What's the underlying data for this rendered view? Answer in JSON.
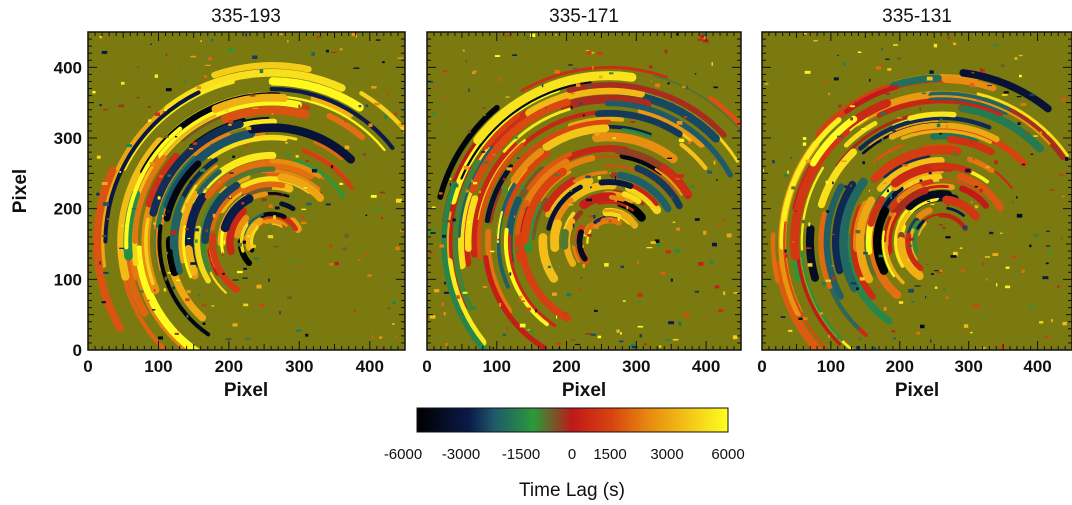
{
  "chart_data": {
    "type": "heatmap",
    "panels": [
      {
        "title": "335-193",
        "xlabel": "Pixel",
        "ylabel": "Pixel",
        "xlim": [
          0,
          450
        ],
        "ylim": [
          0,
          450
        ],
        "xticks": [
          "0",
          "100",
          "200",
          "300",
          "400"
        ],
        "yticks": [
          "0",
          "100",
          "200",
          "300",
          "400"
        ]
      },
      {
        "title": "335-171",
        "xlabel": "Pixel",
        "ylabel": "",
        "xlim": [
          0,
          450
        ],
        "ylim": [
          0,
          450
        ],
        "xticks": [
          "0",
          "100",
          "200",
          "300",
          "400"
        ],
        "yticks": []
      },
      {
        "title": "335-131",
        "xlabel": "Pixel",
        "ylabel": "",
        "xlim": [
          0,
          450
        ],
        "ylim": [
          0,
          450
        ],
        "xticks": [
          "0",
          "100",
          "200",
          "300",
          "400"
        ],
        "yticks": []
      }
    ],
    "colorbar": {
      "title": "Time Lag (s)",
      "range": [
        -6000,
        6000
      ],
      "tick_values": [
        -6000,
        -3000,
        -1500,
        0,
        1500,
        3000,
        6000
      ],
      "tick_labels": [
        "-6000",
        "-3000",
        "-1500",
        "0",
        "1500",
        "3000",
        "6000"
      ],
      "stops": [
        {
          "value": -6000,
          "color": "#000000"
        },
        {
          "value": -4000,
          "color": "#0a1a4a"
        },
        {
          "value": -3000,
          "color": "#1f5a6a"
        },
        {
          "value": -1500,
          "color": "#2a9a3a"
        },
        {
          "value": 0,
          "color": "#c01818"
        },
        {
          "value": 1500,
          "color": "#d84410"
        },
        {
          "value": 3000,
          "color": "#e88c10"
        },
        {
          "value": 6000,
          "color": "#ffff20"
        }
      ]
    },
    "background_color": "#7a7a10"
  }
}
